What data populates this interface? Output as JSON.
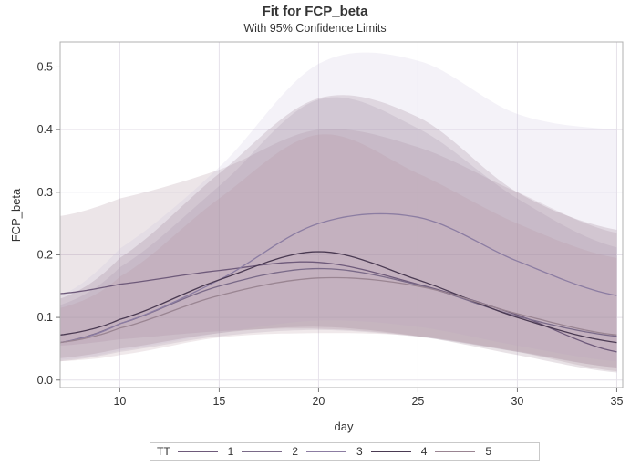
{
  "chart_data": {
    "type": "line",
    "title": "Fit for FCP_beta",
    "subtitle": "With 95% Confidence Limits",
    "xlabel": "day",
    "ylabel": "FCP_beta",
    "xlim": [
      7,
      35.3
    ],
    "ylim": [
      -0.012,
      0.54
    ],
    "xticks": [
      "10",
      "15",
      "20",
      "25",
      "30",
      "35"
    ],
    "yticks": [
      "0.0",
      "0.1",
      "0.2",
      "0.3",
      "0.4",
      "0.5"
    ],
    "grid": true,
    "legend_position": "bottom",
    "legend_title": "TT",
    "x": [
      7,
      10,
      15,
      20,
      25,
      30,
      35
    ],
    "series": [
      {
        "name": "1",
        "color": "#6e5a7a",
        "values": [
          0.138,
          0.153,
          0.175,
          0.188,
          0.153,
          0.104,
          0.045
        ],
        "lower": [
          0.055,
          0.065,
          0.078,
          0.082,
          0.07,
          0.045,
          0.014
        ],
        "upper": [
          0.262,
          0.29,
          0.336,
          0.4,
          0.372,
          0.3,
          0.235
        ]
      },
      {
        "name": "2",
        "color": "#7a6a88",
        "values": [
          0.06,
          0.09,
          0.15,
          0.178,
          0.152,
          0.102,
          0.07
        ],
        "lower": [
          0.03,
          0.045,
          0.07,
          0.08,
          0.069,
          0.045,
          0.02
        ],
        "upper": [
          0.12,
          0.18,
          0.31,
          0.448,
          0.402,
          0.29,
          0.212
        ]
      },
      {
        "name": "3",
        "color": "#8c7da2",
        "values": [
          0.06,
          0.09,
          0.16,
          0.25,
          0.26,
          0.19,
          0.135
        ],
        "lower": [
          0.032,
          0.047,
          0.075,
          0.095,
          0.085,
          0.055,
          0.03
        ],
        "upper": [
          0.135,
          0.21,
          0.34,
          0.505,
          0.51,
          0.425,
          0.4
        ]
      },
      {
        "name": "4",
        "color": "#4a3a52",
        "values": [
          0.072,
          0.097,
          0.16,
          0.205,
          0.16,
          0.1,
          0.06
        ],
        "lower": [
          0.035,
          0.05,
          0.075,
          0.085,
          0.07,
          0.04,
          0.012
        ],
        "upper": [
          0.13,
          0.195,
          0.33,
          0.45,
          0.42,
          0.3,
          0.24
        ]
      },
      {
        "name": "5",
        "color": "#9a8592",
        "values": [
          0.06,
          0.083,
          0.135,
          0.163,
          0.15,
          0.106,
          0.072
        ],
        "lower": [
          0.03,
          0.04,
          0.068,
          0.075,
          0.07,
          0.046,
          0.02
        ],
        "upper": [
          0.115,
          0.165,
          0.29,
          0.392,
          0.33,
          0.25,
          0.195
        ]
      }
    ]
  }
}
